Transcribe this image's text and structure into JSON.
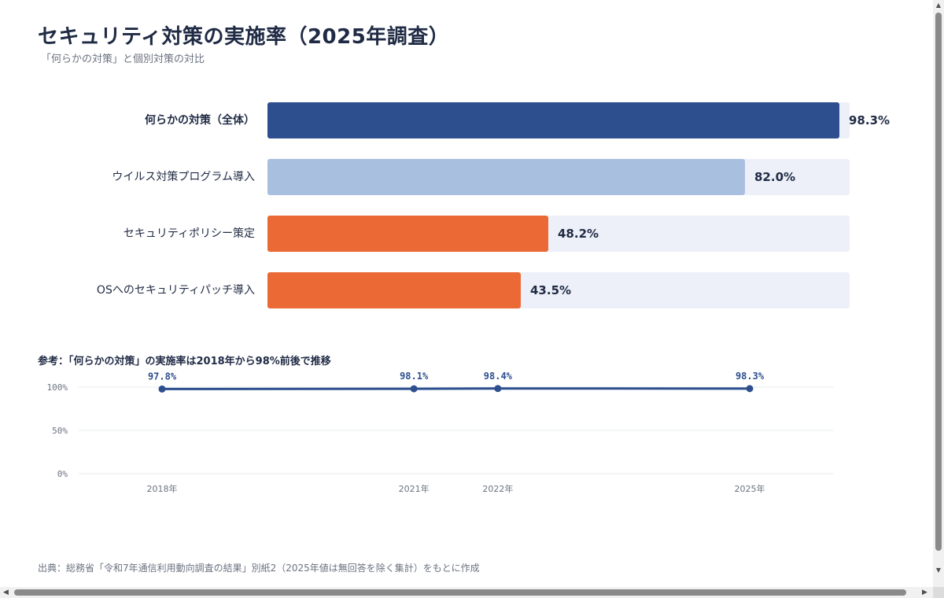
{
  "title": "セキュリティ対策の実施率（2025年調査）",
  "subtitle": "「何らかの対策」と個別対策の対比",
  "chart_data": [
    {
      "type": "bar",
      "orientation": "horizontal",
      "categories": [
        "何らかの対策（全体）",
        "ウイルス対策プログラム導入",
        "セキュリティポリシー策定",
        "OSへのセキュリティパッチ導入"
      ],
      "values": [
        98.3,
        82.0,
        48.2,
        43.5
      ],
      "value_labels": [
        "98.3%",
        "82.0%",
        "48.2%",
        "43.5%"
      ],
      "colors": [
        "#2d4f8e",
        "#a9bfe0",
        "#ea6935",
        "#ea6935"
      ],
      "track_color": "#edf0f8",
      "xlim": [
        0,
        100
      ],
      "grid": false
    },
    {
      "type": "line",
      "title": "参考：「何らかの対策」の実施率は2018年から98%前後で推移",
      "x": [
        2018,
        2021,
        2022,
        2025
      ],
      "x_tick_labels": [
        "2018年",
        "2021年",
        "2022年",
        "2025年"
      ],
      "series": [
        {
          "values": [
            97.8,
            98.1,
            98.4,
            98.3
          ],
          "labels": [
            "97.8%",
            "98.1%",
            "98.4%",
            "98.3%"
          ],
          "color": "#2d4f8e"
        }
      ],
      "y_ticks": [
        0,
        50,
        100
      ],
      "y_tick_labels": [
        "0%",
        "50%",
        "100%"
      ],
      "ylim": [
        0,
        100
      ],
      "grid": true
    }
  ],
  "source": "出典：総務省「令和7年通信利用動向調査の結果」別紙2（2025年値は無回答を除く集計）をもとに作成",
  "scrollbars": {
    "up_arrow": "▲",
    "down_arrow": "▼",
    "left_arrow": "◀",
    "right_arrow": "▶"
  }
}
